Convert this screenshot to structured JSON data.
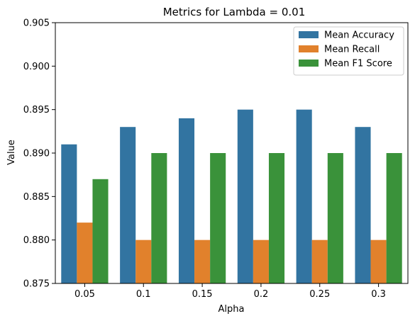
{
  "chart_data": {
    "type": "bar",
    "title": "Metrics for Lambda = 0.01",
    "xlabel": "Alpha",
    "ylabel": "Value",
    "ylim": [
      0.875,
      0.905
    ],
    "yticks": [
      "0.875",
      "0.880",
      "0.885",
      "0.890",
      "0.895",
      "0.900",
      "0.905"
    ],
    "categories": [
      "0.05",
      "0.1",
      "0.15",
      "0.2",
      "0.25",
      "0.3"
    ],
    "series": [
      {
        "name": "Mean Accuracy",
        "color": "#3274a1",
        "values": [
          0.891,
          0.893,
          0.894,
          0.895,
          0.895,
          0.893
        ]
      },
      {
        "name": "Mean Recall",
        "color": "#e1812c",
        "values": [
          0.882,
          0.88,
          0.88,
          0.88,
          0.88,
          0.88
        ]
      },
      {
        "name": "Mean F1 Score",
        "color": "#3a923a",
        "values": [
          0.887,
          0.89,
          0.89,
          0.89,
          0.89,
          0.89
        ]
      }
    ],
    "grid": false,
    "legend_position": "top-right"
  }
}
